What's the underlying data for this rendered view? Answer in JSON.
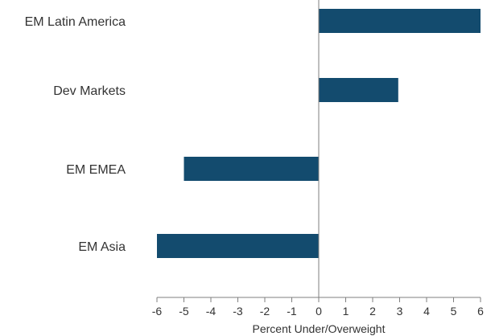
{
  "chart_data": {
    "type": "bar",
    "orientation": "horizontal",
    "categories": [
      "EM Latin America",
      "Dev Markets",
      "EM EMEA",
      "EM Asia"
    ],
    "values": [
      6.0,
      2.95,
      -5.0,
      -6.0
    ],
    "xlabel": "Percent Under/Overweight",
    "xlim": [
      -6,
      6
    ],
    "xticks": [
      "-6",
      "-5",
      "-4",
      "-3",
      "-2",
      "-1",
      "0",
      "1",
      "2",
      "3",
      "4",
      "5",
      "6"
    ],
    "grid": false,
    "legend": "none",
    "colors": {
      "bar": "#134b6e",
      "axis": "#7f7f7f",
      "text": "#333333"
    }
  }
}
